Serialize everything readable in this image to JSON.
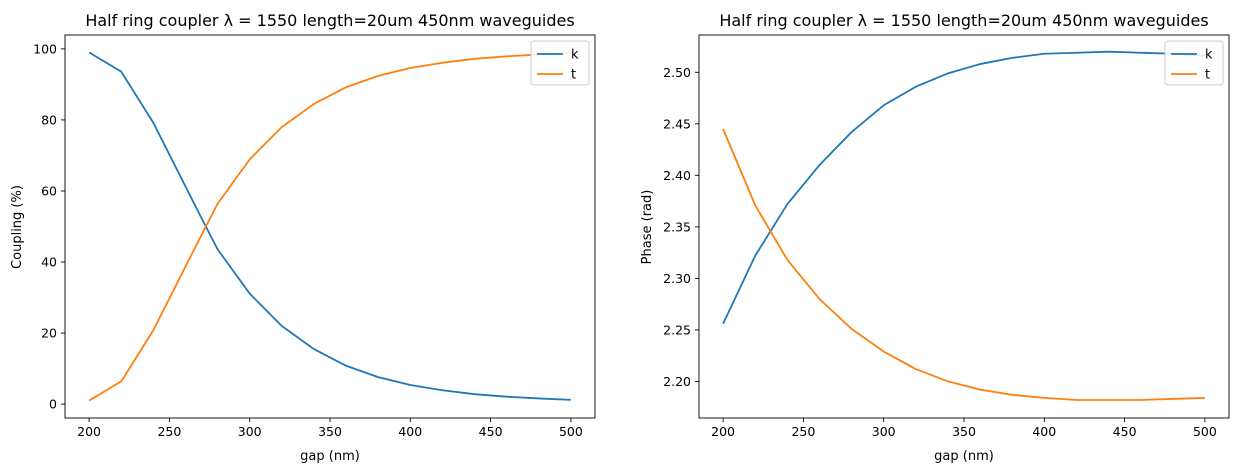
{
  "colors": {
    "k": "#1f77b4",
    "t": "#ff7f0e",
    "axes": "#000000",
    "background": "#ffffff"
  },
  "chart_data": [
    {
      "type": "line",
      "title": "Half ring coupler λ = 1550 length=20um 450nm waveguides",
      "xlabel": "gap (nm)",
      "ylabel": "Coupling (%)",
      "xlim": [
        185,
        515
      ],
      "ylim": [
        -3.9,
        103.9
      ],
      "xticks": [
        "200",
        "250",
        "300",
        "350",
        "400",
        "450",
        "500"
      ],
      "yticks": [
        "0",
        "20",
        "40",
        "60",
        "80",
        "100"
      ],
      "legend_position": "upper right",
      "x": [
        200,
        220,
        240,
        260,
        272,
        280,
        300,
        320,
        340,
        360,
        380,
        400,
        420,
        440,
        460,
        480,
        500
      ],
      "series": [
        {
          "name": "k",
          "color": "#1f77b4",
          "values": [
            99.0,
            93.6,
            79.2,
            61.3,
            50.6,
            43.6,
            31.1,
            22.0,
            15.5,
            10.8,
            7.6,
            5.4,
            3.9,
            2.8,
            2.1,
            1.6,
            1.2
          ]
        },
        {
          "name": "t",
          "color": "#ff7f0e",
          "values": [
            1.0,
            6.4,
            20.8,
            38.7,
            49.4,
            56.4,
            68.9,
            78.0,
            84.5,
            89.2,
            92.4,
            94.6,
            96.1,
            97.2,
            97.9,
            98.4,
            98.8
          ]
        }
      ]
    },
    {
      "type": "line",
      "title": "Half ring coupler λ = 1550 length=20um 450nm waveguides",
      "xlabel": "gap (nm)",
      "ylabel": "Phase (rad)",
      "xlim": [
        185,
        515
      ],
      "ylim": [
        2.1645,
        2.5362
      ],
      "xticks": [
        "200",
        "250",
        "300",
        "350",
        "400",
        "450",
        "500"
      ],
      "yticks": [
        "2.20",
        "2.25",
        "2.30",
        "2.35",
        "2.40",
        "2.45",
        "2.50"
      ],
      "legend_position": "upper right",
      "x": [
        200,
        220,
        240,
        260,
        280,
        300,
        320,
        340,
        360,
        380,
        400,
        420,
        440,
        460,
        480,
        500
      ],
      "series": [
        {
          "name": "k",
          "color": "#1f77b4",
          "values": [
            2.256,
            2.322,
            2.372,
            2.41,
            2.442,
            2.468,
            2.486,
            2.499,
            2.508,
            2.514,
            2.518,
            2.519,
            2.52,
            2.519,
            2.518,
            2.516
          ]
        },
        {
          "name": "t",
          "color": "#ff7f0e",
          "values": [
            2.445,
            2.371,
            2.318,
            2.28,
            2.251,
            2.229,
            2.212,
            2.2,
            2.192,
            2.187,
            2.184,
            2.182,
            2.182,
            2.182,
            2.183,
            2.184
          ]
        }
      ]
    }
  ]
}
